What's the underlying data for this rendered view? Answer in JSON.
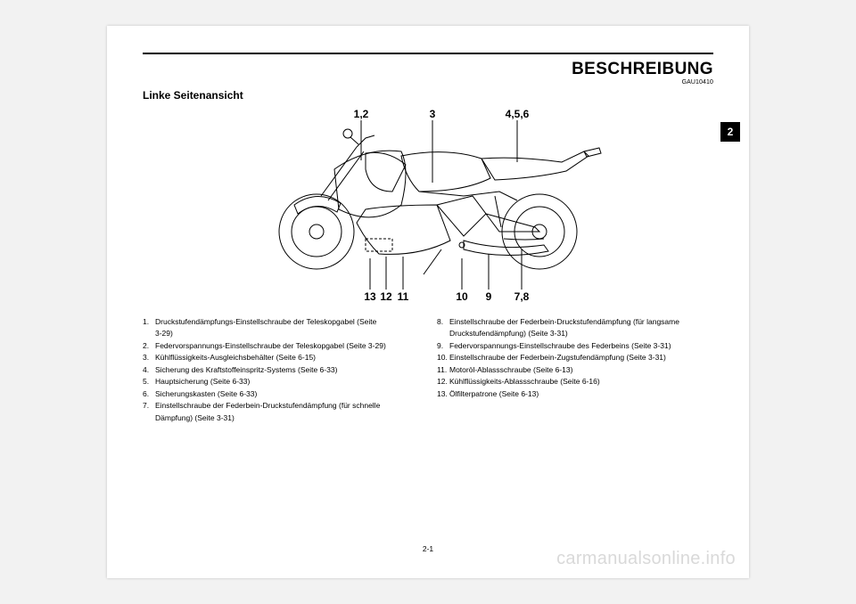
{
  "doc_code": "GAU10410",
  "heading": "BESCHREIBUNG",
  "subhead": "Linke Seitenansicht",
  "chapter_tab": "2",
  "footer_page": "2-1",
  "watermark": "carmanualsonline.info",
  "callouts_top": [
    "1,2",
    "3",
    "4,5,6"
  ],
  "callouts_bottom": [
    "13",
    "12",
    "11",
    "10",
    "9",
    "7,8"
  ],
  "figure": {
    "stroke": "#000000",
    "fill": "#ffffff",
    "dash": "3,2",
    "font_size": 12,
    "font_weight": "bold"
  },
  "left_items": [
    {
      "n": "1.",
      "t": "Druckstufendämpfungs-Einstellschraube der Teleskopgabel (Seite",
      "t2": "3-29)"
    },
    {
      "n": "2.",
      "t": "Federvorspannungs-Einstellschraube der Teleskopgabel (Seite 3-29)"
    },
    {
      "n": "3.",
      "t": "Kühlflüssigkeits-Ausgleichsbehälter (Seite 6-15)"
    },
    {
      "n": "4.",
      "t": "Sicherung des Kraftstoffeinspritz-Systems (Seite 6-33)"
    },
    {
      "n": "5.",
      "t": "Hauptsicherung (Seite 6-33)"
    },
    {
      "n": "6.",
      "t": "Sicherungskasten (Seite 6-33)"
    },
    {
      "n": "7.",
      "t": "Einstellschraube der Federbein-Druckstufendämpfung (für schnelle",
      "t2": "Dämpfung) (Seite 3-31)"
    }
  ],
  "right_items": [
    {
      "n": "8.",
      "t": "Einstellschraube der Federbein-Druckstufendämpfung (für langsame",
      "t2": "Druckstufendämpfung) (Seite 3-31)"
    },
    {
      "n": "9.",
      "t": "Federvorspannungs-Einstellschraube des Federbeins (Seite 3-31)"
    },
    {
      "n": "10.",
      "t": "Einstellschraube der Federbein-Zugstufendämpfung (Seite 3-31)"
    },
    {
      "n": "11.",
      "t": "Motoröl-Ablassschraube (Seite 6-13)"
    },
    {
      "n": "12.",
      "t": "Kühlflüssigkeits-Ablassschraube (Seite 6-16)"
    },
    {
      "n": "13.",
      "t": "Ölfilterpatrone (Seite 6-13)"
    }
  ]
}
